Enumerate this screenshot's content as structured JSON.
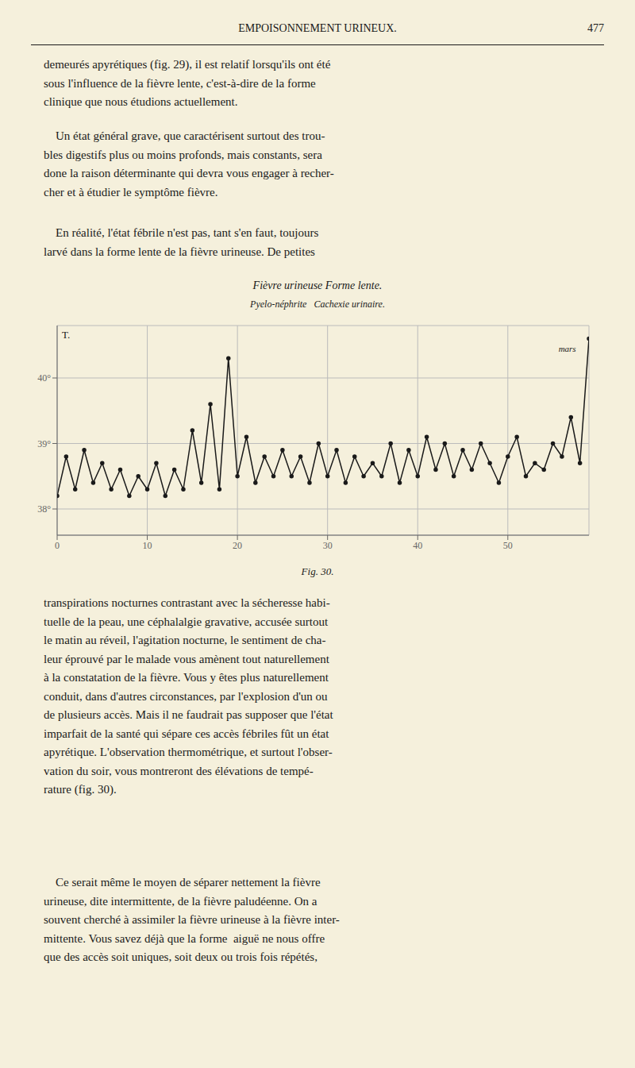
{
  "header": "EMPOISONNEMENT URINEUX.",
  "page_number": "477",
  "paragraphs_before": [
    "demeurés apyrétiques (fig. 29), il est relatif lorsqu'ils ont été\nsous l'influence de la fièvre lente, c'est-à-dire de la forme\nclinique que nous étudions actuellement.",
    "    Un état général grave, que caractérisent surtout des trou-\nbles digestifs plus ou moins profonds, mais constants, sera\ndone la raison déterminante qui devra vous engager à recher-\ncher et à étudier le symptôme fièvre.",
    "    En réalité, l'état fébrile n'est pas, tant s'en faut, toujours\nlarvé dans la forme lente de la fièvre urineuse. De petites"
  ],
  "caption": "Fig. 30.",
  "paragraphs_after": [
    "transpirations nocturnes contrastant avec la sécheresse habi-\ntuelle de la peau, une céphalalgie gravative, accusée surtout\nle matin au réveil, l'agitation nocturne, le sentiment de cha-\nleur éprouvé par le malade vous amènent tout naturellement\nà la constatation de la fièvre. Vous y êtes plus naturellement\nconduit, dans d'autres circonstances, par l'explosion d'un ou\nde plusieurs accès. Mais il ne faudrait pas supposer que l'état\nimparfait de la santé qui sépare ces accès fébriles fût un état\napyrétique. L'observation thermométrique, et surtout l'obser-\nvation du soir, vous montreront des élévations de tempé-\nrature (fig. 30).",
    "    Ce serait même le moyen de séparer nettement la fièvre\nurineuse, dite intermittente, de la fièvre paludéenne. On a\nsouvent cherché à assimiler la fièvre urineuse à la fièvre inter-\nmittente. Vous savez déjà que la forme  aiguë ne nous offre\nque des accès soit uniques, soit deux ou trois fois répétés,"
  ],
  "chart_data": {
    "type": "line",
    "title": "Fièvre urineuse Forme lente.",
    "subtitle": "Pyelo-néphrite   Cachexie urinaire.",
    "ylabel": "T.",
    "x": [
      0,
      1,
      2,
      3,
      4,
      5,
      6,
      7,
      8,
      9,
      10,
      11,
      12,
      13,
      14,
      15,
      16,
      17,
      18,
      19,
      20,
      21,
      22,
      23,
      24,
      25,
      26,
      27,
      28,
      29,
      30,
      31,
      32,
      33,
      34,
      35,
      36,
      37,
      38,
      39,
      40,
      41,
      42,
      43,
      44,
      45,
      46,
      47,
      48,
      49,
      50,
      51,
      52,
      53,
      54,
      55,
      56,
      57,
      58,
      59
    ],
    "values": [
      38.2,
      38.8,
      38.3,
      38.9,
      38.4,
      38.7,
      38.3,
      38.6,
      38.2,
      38.5,
      38.3,
      38.7,
      38.2,
      38.6,
      38.3,
      39.2,
      38.4,
      39.6,
      38.3,
      40.3,
      38.5,
      39.1,
      38.4,
      38.8,
      38.5,
      38.9,
      38.5,
      38.8,
      38.4,
      39.0,
      38.5,
      38.9,
      38.4,
      38.8,
      38.5,
      38.7,
      38.5,
      39.0,
      38.4,
      38.9,
      38.5,
      39.1,
      38.6,
      39.0,
      38.5,
      38.9,
      38.6,
      39.0,
      38.7,
      38.4,
      38.8,
      39.1,
      38.5,
      38.7,
      38.6,
      39.0,
      38.8,
      39.4,
      38.7,
      40.6
    ],
    "color": "#1a1a1a",
    "marker": "circle",
    "xlim": [
      0,
      59
    ],
    "xticks": [
      0,
      10,
      20,
      30,
      40,
      50
    ],
    "ylim": [
      37.6,
      40.8
    ],
    "yticks": [
      {
        "value": 38.0,
        "label": "38°"
      },
      {
        "value": 39.0,
        "label": "39°"
      },
      {
        "value": 40.0,
        "label": "40°"
      }
    ],
    "grid": true,
    "annotations": [
      {
        "text": "mars",
        "x": 58,
        "y": 40.45
      }
    ]
  }
}
